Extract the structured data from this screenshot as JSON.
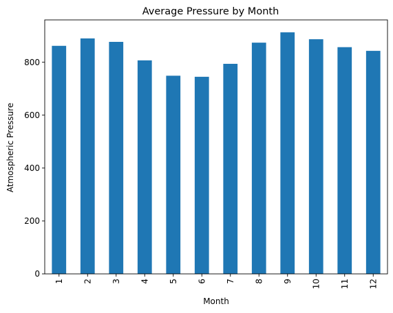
{
  "chart_data": {
    "type": "bar",
    "title": "Average Pressure by Month",
    "xlabel": "Month",
    "ylabel": "Atmospheric Pressure",
    "categories": [
      "1",
      "2",
      "3",
      "4",
      "5",
      "6",
      "7",
      "8",
      "9",
      "10",
      "11",
      "12"
    ],
    "values": [
      862,
      890,
      877,
      807,
      749,
      745,
      794,
      874,
      913,
      887,
      857,
      843
    ],
    "ylim": [
      0,
      960
    ],
    "yticks": [
      0,
      200,
      400,
      600,
      800
    ],
    "color": "#1f77b4",
    "grid": false,
    "legend": false
  }
}
